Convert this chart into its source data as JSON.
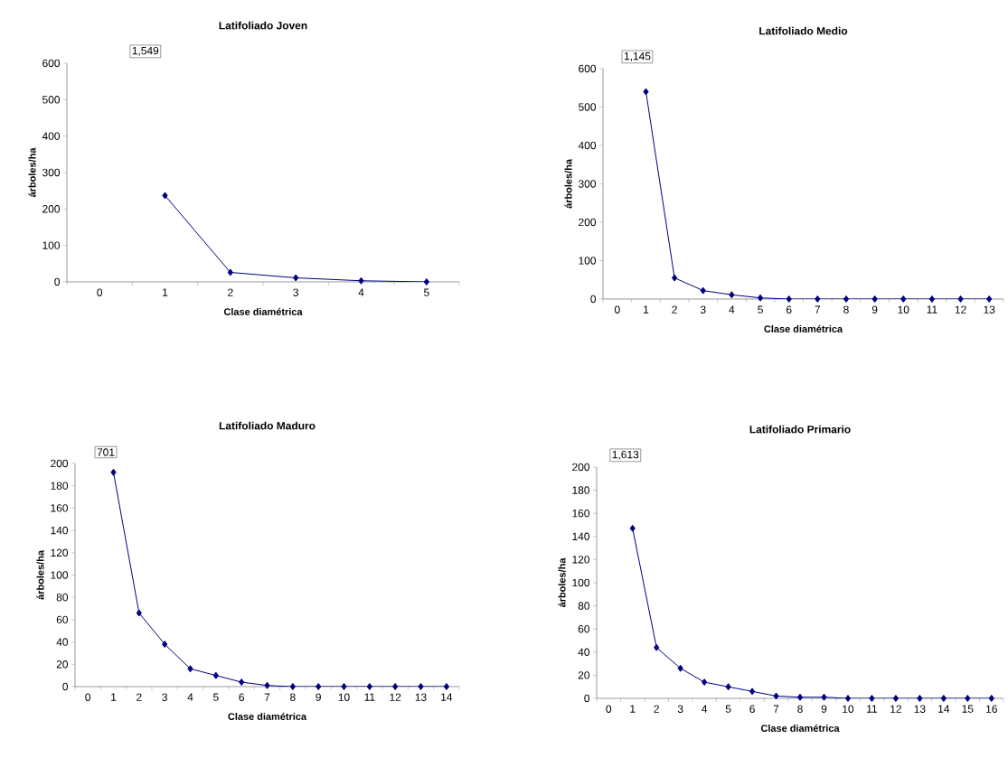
{
  "chart_data": [
    {
      "type": "line",
      "title": "Latifoliado Joven",
      "xlabel": "Clase diamétrica",
      "ylabel": "árboles/ha",
      "categories": [
        "0",
        "1",
        "2",
        "3",
        "4",
        "5"
      ],
      "series": [
        {
          "color": "#000080",
          "values": [
            null,
            237,
            26,
            11,
            3,
            0
          ]
        }
      ],
      "annotations": [
        "1,549"
      ],
      "ylim": [
        0,
        600
      ],
      "yticks": [
        0,
        100,
        200,
        300,
        400,
        500,
        600
      ],
      "marker": "diamond"
    },
    {
      "type": "line",
      "title": "Latifoliado Medio",
      "xlabel": "Clase diamétrica",
      "ylabel": "árboles/ha",
      "categories": [
        "0",
        "1",
        "2",
        "3",
        "4",
        "5",
        "6",
        "7",
        "8",
        "9",
        "10",
        "11",
        "12",
        "13"
      ],
      "series": [
        {
          "color": "#000080",
          "values": [
            null,
            540,
            55,
            22,
            11,
            3,
            0,
            0,
            0,
            0,
            0,
            0,
            0,
            0
          ]
        }
      ],
      "annotations": [
        "1,145"
      ],
      "ylim": [
        0,
        600
      ],
      "yticks": [
        0,
        100,
        200,
        300,
        400,
        500,
        600
      ],
      "marker": "diamond"
    },
    {
      "type": "line",
      "title": "Latifoliado Maduro",
      "xlabel": "Clase diamétrica",
      "ylabel": "árboles/ha",
      "categories": [
        "0",
        "1",
        "2",
        "3",
        "4",
        "5",
        "6",
        "7",
        "8",
        "9",
        "10",
        "11",
        "12",
        "13",
        "14"
      ],
      "series": [
        {
          "color": "#000080",
          "values": [
            null,
            192,
            66,
            38,
            16,
            10,
            4,
            1,
            0,
            0,
            0,
            0,
            0,
            0,
            0
          ]
        }
      ],
      "annotations": [
        "701"
      ],
      "ylim": [
        0,
        200
      ],
      "yticks": [
        0,
        20,
        40,
        60,
        80,
        100,
        120,
        140,
        160,
        180,
        200
      ],
      "marker": "diamond"
    },
    {
      "type": "line",
      "title": "Latifoliado Primario",
      "xlabel": "Clase diamétrica",
      "ylabel": "árboles/ha",
      "categories": [
        "0",
        "1",
        "2",
        "3",
        "4",
        "5",
        "6",
        "7",
        "8",
        "9",
        "10",
        "11",
        "12",
        "13",
        "14",
        "15",
        "16"
      ],
      "series": [
        {
          "color": "#000080",
          "values": [
            null,
            147,
            44,
            26,
            14,
            10,
            6,
            2,
            1,
            1,
            0,
            0,
            0,
            0,
            0,
            0,
            0
          ]
        }
      ],
      "annotations": [
        "1,613"
      ],
      "ylim": [
        0,
        200
      ],
      "yticks": [
        0,
        20,
        40,
        60,
        80,
        100,
        120,
        140,
        160,
        180,
        200
      ],
      "marker": "diamond"
    }
  ]
}
